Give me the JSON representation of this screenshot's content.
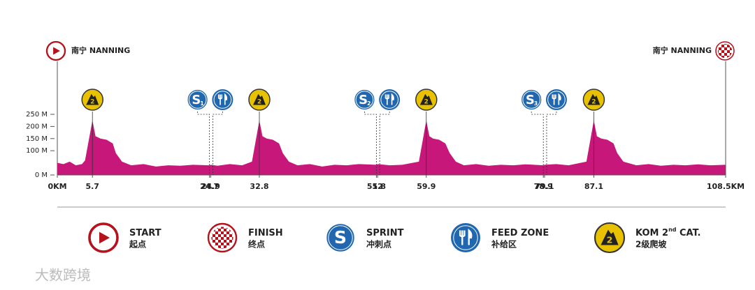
{
  "chart_data": {
    "type": "area",
    "start_label": "南宁 NANNING",
    "finish_label": "南宁 NANNING",
    "color": "#c8177a",
    "xlim": [
      0,
      108.5
    ],
    "ylim": [
      0,
      250
    ],
    "yticks": [
      {
        "value": 0,
        "label": "0 M"
      },
      {
        "value": 100,
        "label": "100 M"
      },
      {
        "value": 150,
        "label": "150 M"
      },
      {
        "value": 200,
        "label": "200 M"
      },
      {
        "value": 250,
        "label": "250 M"
      }
    ],
    "xticks": [
      {
        "value": 0,
        "label": "0KM"
      },
      5.7,
      24.7,
      24.9,
      32.8,
      51.8,
      52,
      59.9,
      78.9,
      79.1,
      87.1,
      {
        "value": 108.5,
        "label": "108.5KM"
      }
    ],
    "profile": {
      "km": [
        0,
        1,
        2,
        3,
        4,
        4.5,
        5.7,
        6.2,
        7,
        8,
        9,
        9.5,
        10.5,
        12,
        14,
        16,
        18,
        20,
        22,
        24.7,
        24.9,
        26,
        28,
        30,
        31.6,
        32.8,
        33.3,
        34,
        35,
        36,
        36.6,
        37.6,
        39,
        41,
        43,
        45,
        47,
        49,
        51.8,
        52,
        54,
        56,
        58.7,
        59.9,
        60.4,
        61,
        62,
        63,
        63.7,
        64.7,
        66,
        68,
        70,
        72,
        74,
        76,
        78.9,
        79.1,
        81,
        83,
        85.9,
        87.1,
        87.6,
        88.3,
        89.3,
        90.3,
        90.9,
        91.9,
        94,
        96,
        98,
        100,
        102,
        104,
        106,
        108.5
      ],
      "elevation": [
        50,
        45,
        55,
        40,
        45,
        60,
        225,
        160,
        150,
        145,
        130,
        90,
        55,
        40,
        45,
        35,
        40,
        38,
        42,
        40,
        42,
        38,
        45,
        40,
        55,
        225,
        160,
        150,
        145,
        130,
        90,
        55,
        40,
        45,
        35,
        42,
        40,
        45,
        42,
        45,
        40,
        42,
        55,
        225,
        160,
        150,
        145,
        130,
        90,
        55,
        40,
        45,
        38,
        42,
        40,
        44,
        40,
        42,
        45,
        40,
        55,
        225,
        160,
        150,
        145,
        130,
        90,
        55,
        40,
        45,
        38,
        42,
        40,
        44,
        40,
        42
      ]
    },
    "kom": [
      {
        "km": 5.7,
        "label": "2"
      },
      {
        "km": 32.8,
        "label": "2"
      },
      {
        "km": 59.9,
        "label": "2"
      },
      {
        "km": 87.1,
        "label": "2"
      }
    ],
    "sprints": [
      {
        "km": 24.7,
        "label": "S",
        "number": "1"
      },
      {
        "km": 51.8,
        "label": "S",
        "number": "2"
      },
      {
        "km": 78.9,
        "label": "S",
        "number": "3"
      }
    ],
    "feed_zones": [
      24.9,
      52,
      79.1
    ],
    "legend": [
      {
        "label": "START",
        "sub": "起点"
      },
      {
        "label": "FINISH",
        "sub": "终点"
      },
      {
        "label": "SPRINT",
        "sub": "冲刺点",
        "icon_label": "S"
      },
      {
        "label": "FEED ZONE",
        "sub": "补给区"
      },
      {
        "label": "KOM 2",
        "sup": "nd",
        "label_end": " CAT.",
        "sub": "2级爬坡",
        "icon_label": "2"
      }
    ],
    "watermark": "大数跨境"
  }
}
